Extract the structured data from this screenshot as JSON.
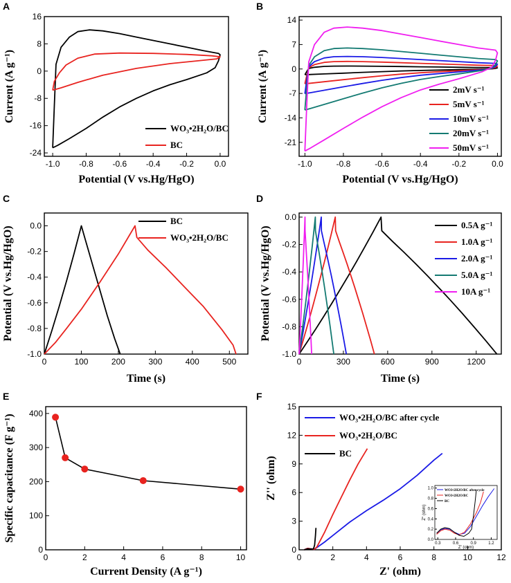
{
  "panels": {
    "A": "A",
    "B": "B",
    "C": "C",
    "D": "D",
    "E": "E",
    "F": "F"
  },
  "chart_data": [
    {
      "id": "A",
      "type": "line",
      "xlabel": "Potential (V vs.Hg/HgO)",
      "ylabel": "Current (A g⁻¹)",
      "xlim": [
        -1.05,
        0.05
      ],
      "ylim": [
        -25,
        16
      ],
      "xticks": [
        "-1.0",
        "-0.8",
        "-0.6",
        "-0.4",
        "-0.2",
        "0.0"
      ],
      "yticks": [
        "16",
        "8",
        "0",
        "-8",
        "-16",
        "-24"
      ],
      "legend": [
        "WO₃•2H₂O/BC",
        "BC"
      ],
      "series": [
        {
          "name": "WO₃•2H₂O/BC",
          "color": "#000000",
          "points": [
            [
              -1.0,
              -22.5
            ],
            [
              -0.99,
              -10
            ],
            [
              -0.98,
              2
            ],
            [
              -0.95,
              7
            ],
            [
              -0.9,
              10
            ],
            [
              -0.85,
              11.6
            ],
            [
              -0.78,
              12.1
            ],
            [
              -0.7,
              11.8
            ],
            [
              -0.6,
              11
            ],
            [
              -0.5,
              10
            ],
            [
              -0.4,
              9
            ],
            [
              -0.3,
              8
            ],
            [
              -0.2,
              7
            ],
            [
              -0.1,
              6
            ],
            [
              -0.01,
              5.2
            ],
            [
              0.0,
              4.8
            ],
            [
              -0.01,
              3
            ],
            [
              -0.03,
              1
            ],
            [
              -0.08,
              -0.5
            ],
            [
              -0.2,
              -2.5
            ],
            [
              -0.3,
              -4
            ],
            [
              -0.4,
              -5.8
            ],
            [
              -0.5,
              -8
            ],
            [
              -0.6,
              -10.5
            ],
            [
              -0.7,
              -13.5
            ],
            [
              -0.8,
              -16.8
            ],
            [
              -0.9,
              -19.8
            ],
            [
              -0.97,
              -21.8
            ],
            [
              -1.0,
              -22.5
            ]
          ]
        },
        {
          "name": "BC",
          "color": "#e8231f",
          "points": [
            [
              -1.0,
              -5.6
            ],
            [
              -0.99,
              -3
            ],
            [
              -0.96,
              -0.5
            ],
            [
              -0.92,
              1.8
            ],
            [
              -0.85,
              3.8
            ],
            [
              -0.75,
              5.0
            ],
            [
              -0.6,
              5.3
            ],
            [
              -0.4,
              5.2
            ],
            [
              -0.2,
              4.9
            ],
            [
              -0.05,
              4.5
            ],
            [
              0.0,
              4.2
            ],
            [
              -0.02,
              3.6
            ],
            [
              -0.1,
              3.2
            ],
            [
              -0.3,
              2.2
            ],
            [
              -0.5,
              0.8
            ],
            [
              -0.7,
              -1.2
            ],
            [
              -0.85,
              -3.3
            ],
            [
              -0.95,
              -4.9
            ],
            [
              -1.0,
              -5.6
            ]
          ]
        }
      ]
    },
    {
      "id": "B",
      "type": "line",
      "xlabel": "Potential (V vs.Hg/HgO)",
      "ylabel": "Current (A g⁻¹)",
      "xlim": [
        -1.03,
        0.02
      ],
      "ylim": [
        -25,
        15
      ],
      "xticks": [
        "-1.0",
        "-0.8",
        "-0.6",
        "-0.4",
        "-0.2",
        "0.0"
      ],
      "yticks": [
        "14",
        "7",
        "0",
        "-7",
        "-14",
        "-21"
      ],
      "legend": [
        "2mV s⁻¹",
        "5mV s⁻¹",
        "10mV s⁻¹",
        "20mV s⁻¹",
        "50mV s⁻¹"
      ],
      "scan_scale": [
        0.07,
        0.18,
        0.3,
        0.5,
        1.0
      ],
      "series_names": [
        "2mV s⁻¹",
        "5mV s⁻¹",
        "10mV s⁻¹",
        "20mV s⁻¹",
        "50mV s⁻¹"
      ],
      "series_colors": [
        "#000000",
        "#e8231f",
        "#1a1ae6",
        "#137a72",
        "#f01ef0"
      ],
      "base_shape": [
        [
          -1.0,
          -23.5
        ],
        [
          -0.99,
          -10
        ],
        [
          -0.98,
          2
        ],
        [
          -0.95,
          7
        ],
        [
          -0.9,
          10.5
        ],
        [
          -0.85,
          11.7
        ],
        [
          -0.78,
          12.0
        ],
        [
          -0.7,
          11.7
        ],
        [
          -0.6,
          11
        ],
        [
          -0.5,
          10
        ],
        [
          -0.4,
          9
        ],
        [
          -0.3,
          8
        ],
        [
          -0.2,
          7
        ],
        [
          -0.1,
          6
        ],
        [
          -0.01,
          5.4
        ],
        [
          0.0,
          4.6
        ],
        [
          -0.01,
          2.5
        ],
        [
          -0.03,
          0.5
        ],
        [
          -0.08,
          -0.8
        ],
        [
          -0.2,
          -2.8
        ],
        [
          -0.3,
          -4.3
        ],
        [
          -0.4,
          -6.0
        ],
        [
          -0.5,
          -8.2
        ],
        [
          -0.6,
          -10.8
        ],
        [
          -0.7,
          -13.8
        ],
        [
          -0.8,
          -17
        ],
        [
          -0.9,
          -20.3
        ],
        [
          -0.97,
          -22.6
        ],
        [
          -1.0,
          -23.5
        ]
      ]
    },
    {
      "id": "C",
      "type": "line",
      "xlabel": "Time (s)",
      "ylabel": "Potential (V vs.Hg/HgO)",
      "xlim": [
        0,
        550
      ],
      "ylim": [
        -1.0,
        0.1
      ],
      "xticks": [
        "0",
        "100",
        "200",
        "300",
        "400",
        "500"
      ],
      "yticks": [
        "0.0",
        "-0.2",
        "-0.4",
        "-0.6",
        "-0.8",
        "-1.0"
      ],
      "legend": [
        "BC",
        "WO₃•2H₂O/BC"
      ],
      "series": [
        {
          "name": "BC",
          "color": "#000000",
          "points": [
            [
              0,
              -1.0
            ],
            [
              20,
              -0.82
            ],
            [
              40,
              -0.63
            ],
            [
              60,
              -0.43
            ],
            [
              80,
              -0.22
            ],
            [
              100,
              0.0
            ],
            [
              110,
              -0.1
            ],
            [
              130,
              -0.3
            ],
            [
              150,
              -0.5
            ],
            [
              170,
              -0.7
            ],
            [
              190,
              -0.88
            ],
            [
              205,
              -1.0
            ]
          ]
        },
        {
          "name": "WO₃•2H₂O/BC",
          "color": "#e8231f",
          "points": [
            [
              0,
              -1.0
            ],
            [
              30,
              -0.91
            ],
            [
              60,
              -0.8
            ],
            [
              100,
              -0.65
            ],
            [
              150,
              -0.44
            ],
            [
              200,
              -0.22
            ],
            [
              245,
              0.0
            ],
            [
              250,
              -0.09
            ],
            [
              280,
              -0.19
            ],
            [
              330,
              -0.33
            ],
            [
              380,
              -0.48
            ],
            [
              430,
              -0.63
            ],
            [
              480,
              -0.81
            ],
            [
              510,
              -0.93
            ],
            [
              518,
              -1.0
            ]
          ]
        }
      ]
    },
    {
      "id": "D",
      "type": "line",
      "xlabel": "Time (s)",
      "ylabel": "Potential (V vs.Hg/HgO)",
      "xlim": [
        0,
        1370
      ],
      "ylim": [
        -1.0,
        0.03
      ],
      "xticks": [
        "0",
        "300",
        "600",
        "900",
        "1200"
      ],
      "yticks": [
        "0.0",
        "-0.2",
        "-0.4",
        "-0.6",
        "-0.8",
        "-1.0"
      ],
      "legend": [
        "0.5A g⁻¹",
        "1.0A g⁻¹",
        "2.0A g⁻¹",
        "5.0A g⁻¹",
        "10A g⁻¹"
      ],
      "series": [
        {
          "name": "0.5A g⁻¹",
          "color": "#000000",
          "peak": 555,
          "end": 1340
        },
        {
          "name": "1.0A g⁻¹",
          "color": "#e8231f",
          "peak": 245,
          "end": 510
        },
        {
          "name": "2.0A g⁻¹",
          "color": "#1a1ae6",
          "peak": 150,
          "end": 320
        },
        {
          "name": "5.0A g⁻¹",
          "color": "#137a72",
          "peak": 110,
          "end": 235
        },
        {
          "name": "10A g⁻¹",
          "color": "#f01ef0",
          "peak": 40,
          "end": 85
        }
      ]
    },
    {
      "id": "E",
      "type": "scatter",
      "xlabel": "Current Density (A g⁻¹)",
      "ylabel": "Specific capacitance (F g⁻¹)",
      "xlim": [
        0,
        10.3
      ],
      "ylim": [
        0,
        420
      ],
      "xticks": [
        "0",
        "2",
        "4",
        "6",
        "8",
        "10"
      ],
      "yticks": [
        "400",
        "300",
        "200",
        "100",
        "0"
      ],
      "x": [
        0.5,
        1.0,
        2.0,
        5.0,
        10.0
      ],
      "values": [
        389,
        270,
        237,
        203,
        178
      ],
      "color": "#e8231f"
    },
    {
      "id": "F",
      "type": "line",
      "xlabel": "Z' (ohm)",
      "ylabel": "Z'' (ohm)",
      "xlim": [
        0,
        12
      ],
      "ylim": [
        0,
        15
      ],
      "xticks": [
        "0",
        "2",
        "4",
        "6",
        "8",
        "10",
        "12"
      ],
      "yticks": [
        "15",
        "12",
        "9",
        "6",
        "3",
        "0"
      ],
      "legend": [
        "WO₃•2H₂O/BC after cycle",
        "WO₃•2H₂O/BC",
        "BC"
      ],
      "series": [
        {
          "name": "WO₃•2H₂O/BC after cycle",
          "color": "#1a1ae6",
          "points": [
            [
              0.3,
              0
            ],
            [
              0.5,
              0.15
            ],
            [
              0.7,
              0.1
            ],
            [
              0.9,
              0.05
            ],
            [
              1.1,
              0.3
            ],
            [
              1.5,
              0.8
            ],
            [
              2,
              1.5
            ],
            [
              3,
              2.9
            ],
            [
              4,
              4.1
            ],
            [
              5,
              5.2
            ],
            [
              6,
              6.4
            ],
            [
              7,
              7.8
            ],
            [
              8,
              9.4
            ],
            [
              8.5,
              10.1
            ]
          ]
        },
        {
          "name": "WO₃•2H₂O/BC",
          "color": "#e8231f",
          "points": [
            [
              0.3,
              0
            ],
            [
              0.5,
              0.15
            ],
            [
              0.7,
              0.1
            ],
            [
              0.9,
              0.05
            ],
            [
              1.05,
              0.3
            ],
            [
              1.5,
              1.8
            ],
            [
              2,
              3.7
            ],
            [
              2.5,
              5.5
            ],
            [
              3,
              7.3
            ],
            [
              3.5,
              9.0
            ],
            [
              4.05,
              10.6
            ]
          ]
        },
        {
          "name": "BC",
          "color": "#000000",
          "points": [
            [
              0.3,
              0
            ],
            [
              0.5,
              0.1
            ],
            [
              0.7,
              0.08
            ],
            [
              0.85,
              0.1
            ],
            [
              0.92,
              0.5
            ],
            [
              0.97,
              1.5
            ],
            [
              1.0,
              2.3
            ]
          ]
        }
      ],
      "inset": {
        "xlim": [
          0.25,
          1.3
        ],
        "ylim": [
          0,
          1.05
        ],
        "xticks": [
          "0.3",
          "0.6",
          "0.9",
          "1.2"
        ],
        "yticks": [
          "1.0",
          "0.8",
          "0.6",
          "0.4",
          "0.2",
          "0.0"
        ],
        "xlabel": "Z' (ohm)",
        "ylabel": "Z'' (ohm)",
        "legend": [
          "WO3•2H2O/BC after cycle",
          "WO3•2H2O/BC",
          "BC"
        ],
        "series": [
          {
            "color": "#1a1ae6",
            "points": [
              [
                0.28,
                0.12
              ],
              [
                0.35,
                0.19
              ],
              [
                0.42,
                0.21
              ],
              [
                0.5,
                0.2
              ],
              [
                0.58,
                0.14
              ],
              [
                0.66,
                0.1
              ],
              [
                0.75,
                0.12
              ],
              [
                0.85,
                0.25
              ],
              [
                0.95,
                0.45
              ],
              [
                1.05,
                0.65
              ],
              [
                1.15,
                0.83
              ],
              [
                1.25,
                0.99
              ]
            ]
          },
          {
            "color": "#e8231f",
            "points": [
              [
                0.28,
                0.1
              ],
              [
                0.35,
                0.17
              ],
              [
                0.42,
                0.2
              ],
              [
                0.5,
                0.18
              ],
              [
                0.58,
                0.12
              ],
              [
                0.66,
                0.09
              ],
              [
                0.75,
                0.14
              ],
              [
                0.85,
                0.3
              ],
              [
                0.95,
                0.52
              ],
              [
                1.02,
                0.72
              ],
              [
                1.07,
                0.93
              ]
            ]
          },
          {
            "color": "#000000",
            "points": [
              [
                0.28,
                0.12
              ],
              [
                0.35,
                0.2
              ],
              [
                0.42,
                0.23
              ],
              [
                0.5,
                0.21
              ],
              [
                0.58,
                0.14
              ],
              [
                0.66,
                0.08
              ],
              [
                0.74,
                0.06
              ],
              [
                0.82,
                0.12
              ],
              [
                0.87,
                0.2
              ],
              [
                0.9,
                0.45
              ],
              [
                0.93,
                0.75
              ],
              [
                0.95,
                0.97
              ]
            ]
          }
        ]
      }
    }
  ]
}
